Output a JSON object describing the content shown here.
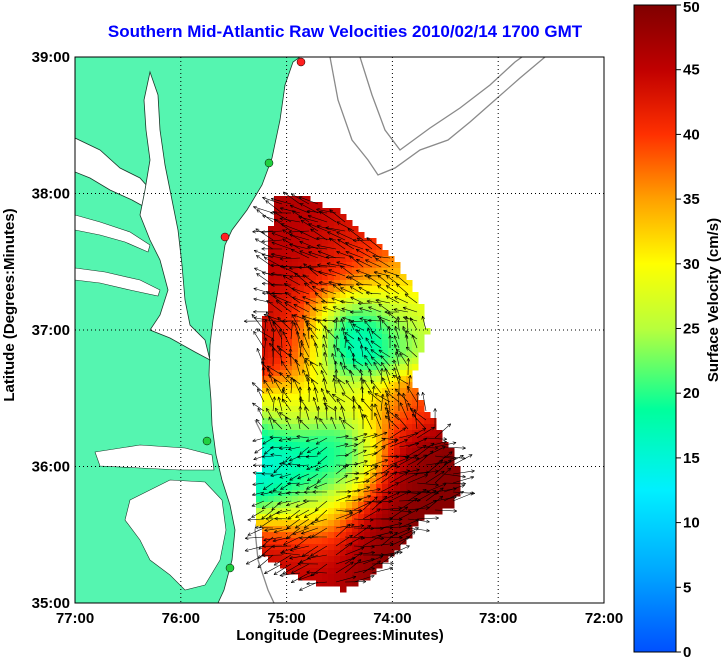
{
  "title": "Southern Mid-Atlantic Raw Velocities 2010/02/14 1700 GMT",
  "xlabel": "Longitude (Degrees:Minutes)",
  "ylabel": "Latitude (Degrees:Minutes)",
  "x_ticks": [
    "77:00",
    "76:00",
    "75:00",
    "74:00",
    "73:00",
    "72:00"
  ],
  "y_ticks": [
    "39:00",
    "38:00",
    "37:00",
    "36:00",
    "35:00"
  ],
  "colorbar": {
    "label": "Surface Velocity (cm/s)",
    "ticks": [
      "0",
      "5",
      "10",
      "15",
      "20",
      "25",
      "30",
      "35",
      "40",
      "45",
      "50"
    ],
    "range": [
      0,
      50
    ],
    "colors": [
      "#0050ff",
      "#00d8ff",
      "#00ff9c",
      "#b8ff3c",
      "#ffff00",
      "#ffa000",
      "#ff2000",
      "#c00000",
      "#800000"
    ]
  },
  "map": {
    "lon_range": [
      -77,
      -72
    ],
    "lat_range": [
      35,
      39
    ],
    "land_color": "#55f5b0",
    "grid": true
  }
}
